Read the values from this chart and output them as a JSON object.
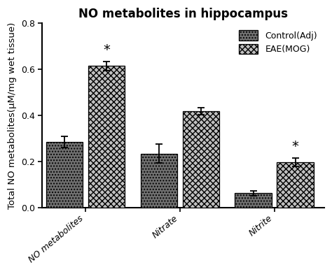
{
  "title": "NO metabolites in hippocampus",
  "ylabel": "Total NO metabolites(μM/mg wet tissue)",
  "categories": [
    "NO metabolites",
    "Nitrate",
    "Nitrite"
  ],
  "control_values": [
    0.285,
    0.235,
    0.063
  ],
  "eae_values": [
    0.615,
    0.42,
    0.198
  ],
  "control_errors": [
    0.025,
    0.04,
    0.01
  ],
  "eae_errors": [
    0.02,
    0.015,
    0.018
  ],
  "ylim": [
    0,
    0.8
  ],
  "yticks": [
    0.0,
    0.2,
    0.4,
    0.6,
    0.8
  ],
  "bar_width": 0.28,
  "legend_labels": [
    "Control(Adj)",
    "EAE(MOG)"
  ],
  "significant_eae": [
    true,
    false,
    true
  ],
  "background_color": "#ffffff",
  "title_fontsize": 12,
  "label_fontsize": 9.5,
  "tick_fontsize": 9,
  "group_centers": [
    0.38,
    1.1,
    1.82
  ]
}
